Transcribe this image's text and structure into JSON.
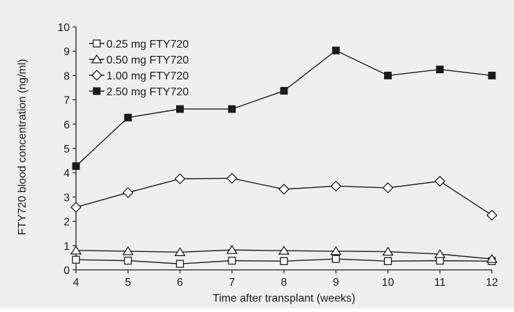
{
  "chart_data": {
    "type": "line",
    "title": "",
    "xlabel": "Time after transplant (weeks)",
    "ylabel": "FTY720 blood concentration (ng/ml)",
    "x": [
      4,
      5,
      6,
      7,
      8,
      9,
      10,
      11,
      12
    ],
    "xlim": [
      4,
      12
    ],
    "ylim": [
      0,
      10
    ],
    "x_ticks": [
      "4",
      "5",
      "6",
      "7",
      "8",
      "9",
      "10",
      "11",
      "12"
    ],
    "y_ticks": [
      "0",
      "1",
      "2",
      "3",
      "4",
      "5",
      "6",
      "7",
      "8",
      "9",
      "10"
    ],
    "grid": false,
    "legend_position": "top-left",
    "series": [
      {
        "name": "0.25 mg FTY720",
        "marker": "square-open",
        "color": "#1a1a1a",
        "values": [
          0.42,
          0.38,
          0.25,
          0.38,
          0.36,
          0.45,
          0.36,
          0.38,
          0.36
        ]
      },
      {
        "name": "0.50 mg FTY720",
        "marker": "triangle-open",
        "color": "#1a1a1a",
        "values": [
          0.8,
          0.77,
          0.73,
          0.82,
          0.79,
          0.77,
          0.75,
          0.65,
          0.45
        ]
      },
      {
        "name": "1.00 mg FTY720",
        "marker": "diamond-open",
        "color": "#1a1a1a",
        "values": [
          2.58,
          3.18,
          3.75,
          3.77,
          3.32,
          3.45,
          3.38,
          3.65,
          2.25
        ]
      },
      {
        "name": "2.50 mg FTY720",
        "marker": "square-filled",
        "color": "#1a1a1a",
        "values": [
          4.27,
          6.27,
          6.62,
          6.62,
          7.37,
          9.03,
          8.0,
          8.25,
          8.0
        ]
      }
    ]
  }
}
